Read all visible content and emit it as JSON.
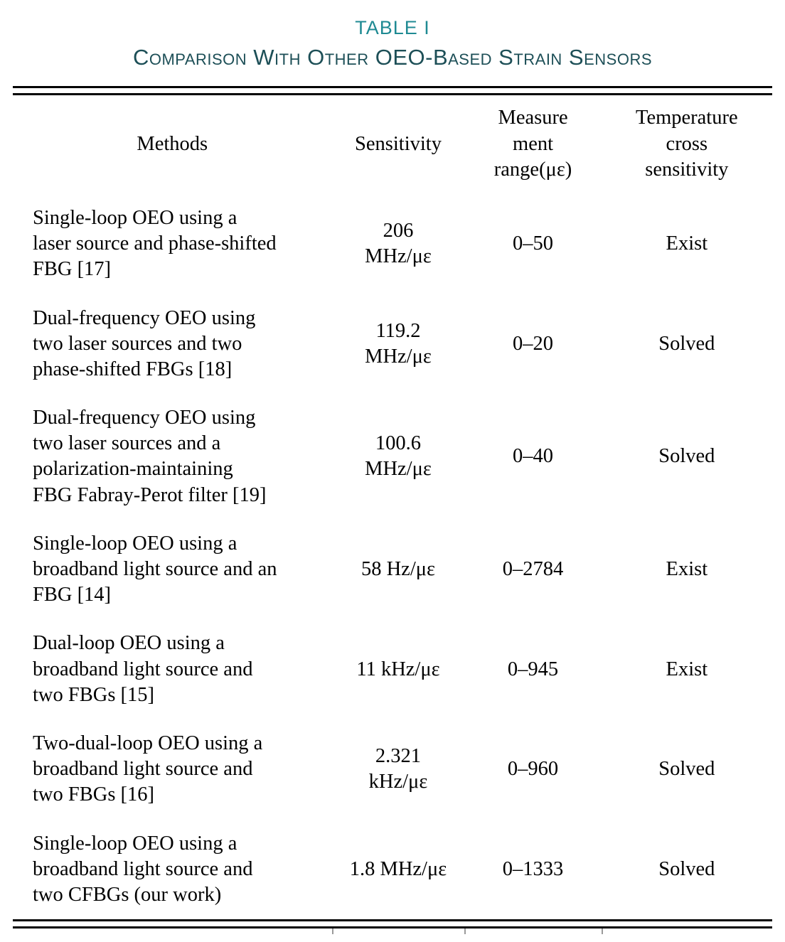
{
  "caption": {
    "label": "TABLE I",
    "title": "Comparison With Other OEO-Based Strain Sensors"
  },
  "colors": {
    "caption_label": "#1f8a93",
    "caption_title": "#1d4f57",
    "body_text": "#000000"
  },
  "table": {
    "columns": [
      "Methods",
      "Sensitivity",
      "Measure\nment\nrange(με)",
      "Temperature\ncross\nsensitivity"
    ],
    "rows": [
      {
        "method": "Single-loop OEO using a\nlaser source and phase-shifted\nFBG [17]",
        "sensitivity": "206\nMHz/με",
        "range": "0–50",
        "temperature": "Exist"
      },
      {
        "method": "Dual-frequency OEO using\ntwo laser sources and two\nphase-shifted FBGs [18]",
        "sensitivity": "119.2\nMHz/με",
        "range": "0–20",
        "temperature": "Solved"
      },
      {
        "method": "Dual-frequency OEO using\ntwo laser sources and a\npolarization-maintaining\nFBG Fabray-Perot filter [19]",
        "sensitivity": "100.6\nMHz/με",
        "range": "0–40",
        "temperature": "Solved"
      },
      {
        "method": "Single-loop OEO using a\nbroadband light source and an\nFBG [14]",
        "sensitivity": "58 Hz/με",
        "range": "0–2784",
        "temperature": "Exist"
      },
      {
        "method": "Dual-loop OEO using a\nbroadband light source and\ntwo FBGs [15]",
        "sensitivity": "11 kHz/με",
        "range": "0–945",
        "temperature": "Exist"
      },
      {
        "method": "Two-dual-loop OEO using a\nbroadband light source and\ntwo FBGs [16]",
        "sensitivity": "2.321\nkHz/με",
        "range": "0–960",
        "temperature": "Solved"
      },
      {
        "method": "Single-loop OEO using a\nbroadband light source and\ntwo CFBGs (our work)",
        "sensitivity": "1.8 MHz/με",
        "range": "0–1333",
        "temperature": "Solved"
      }
    ]
  }
}
